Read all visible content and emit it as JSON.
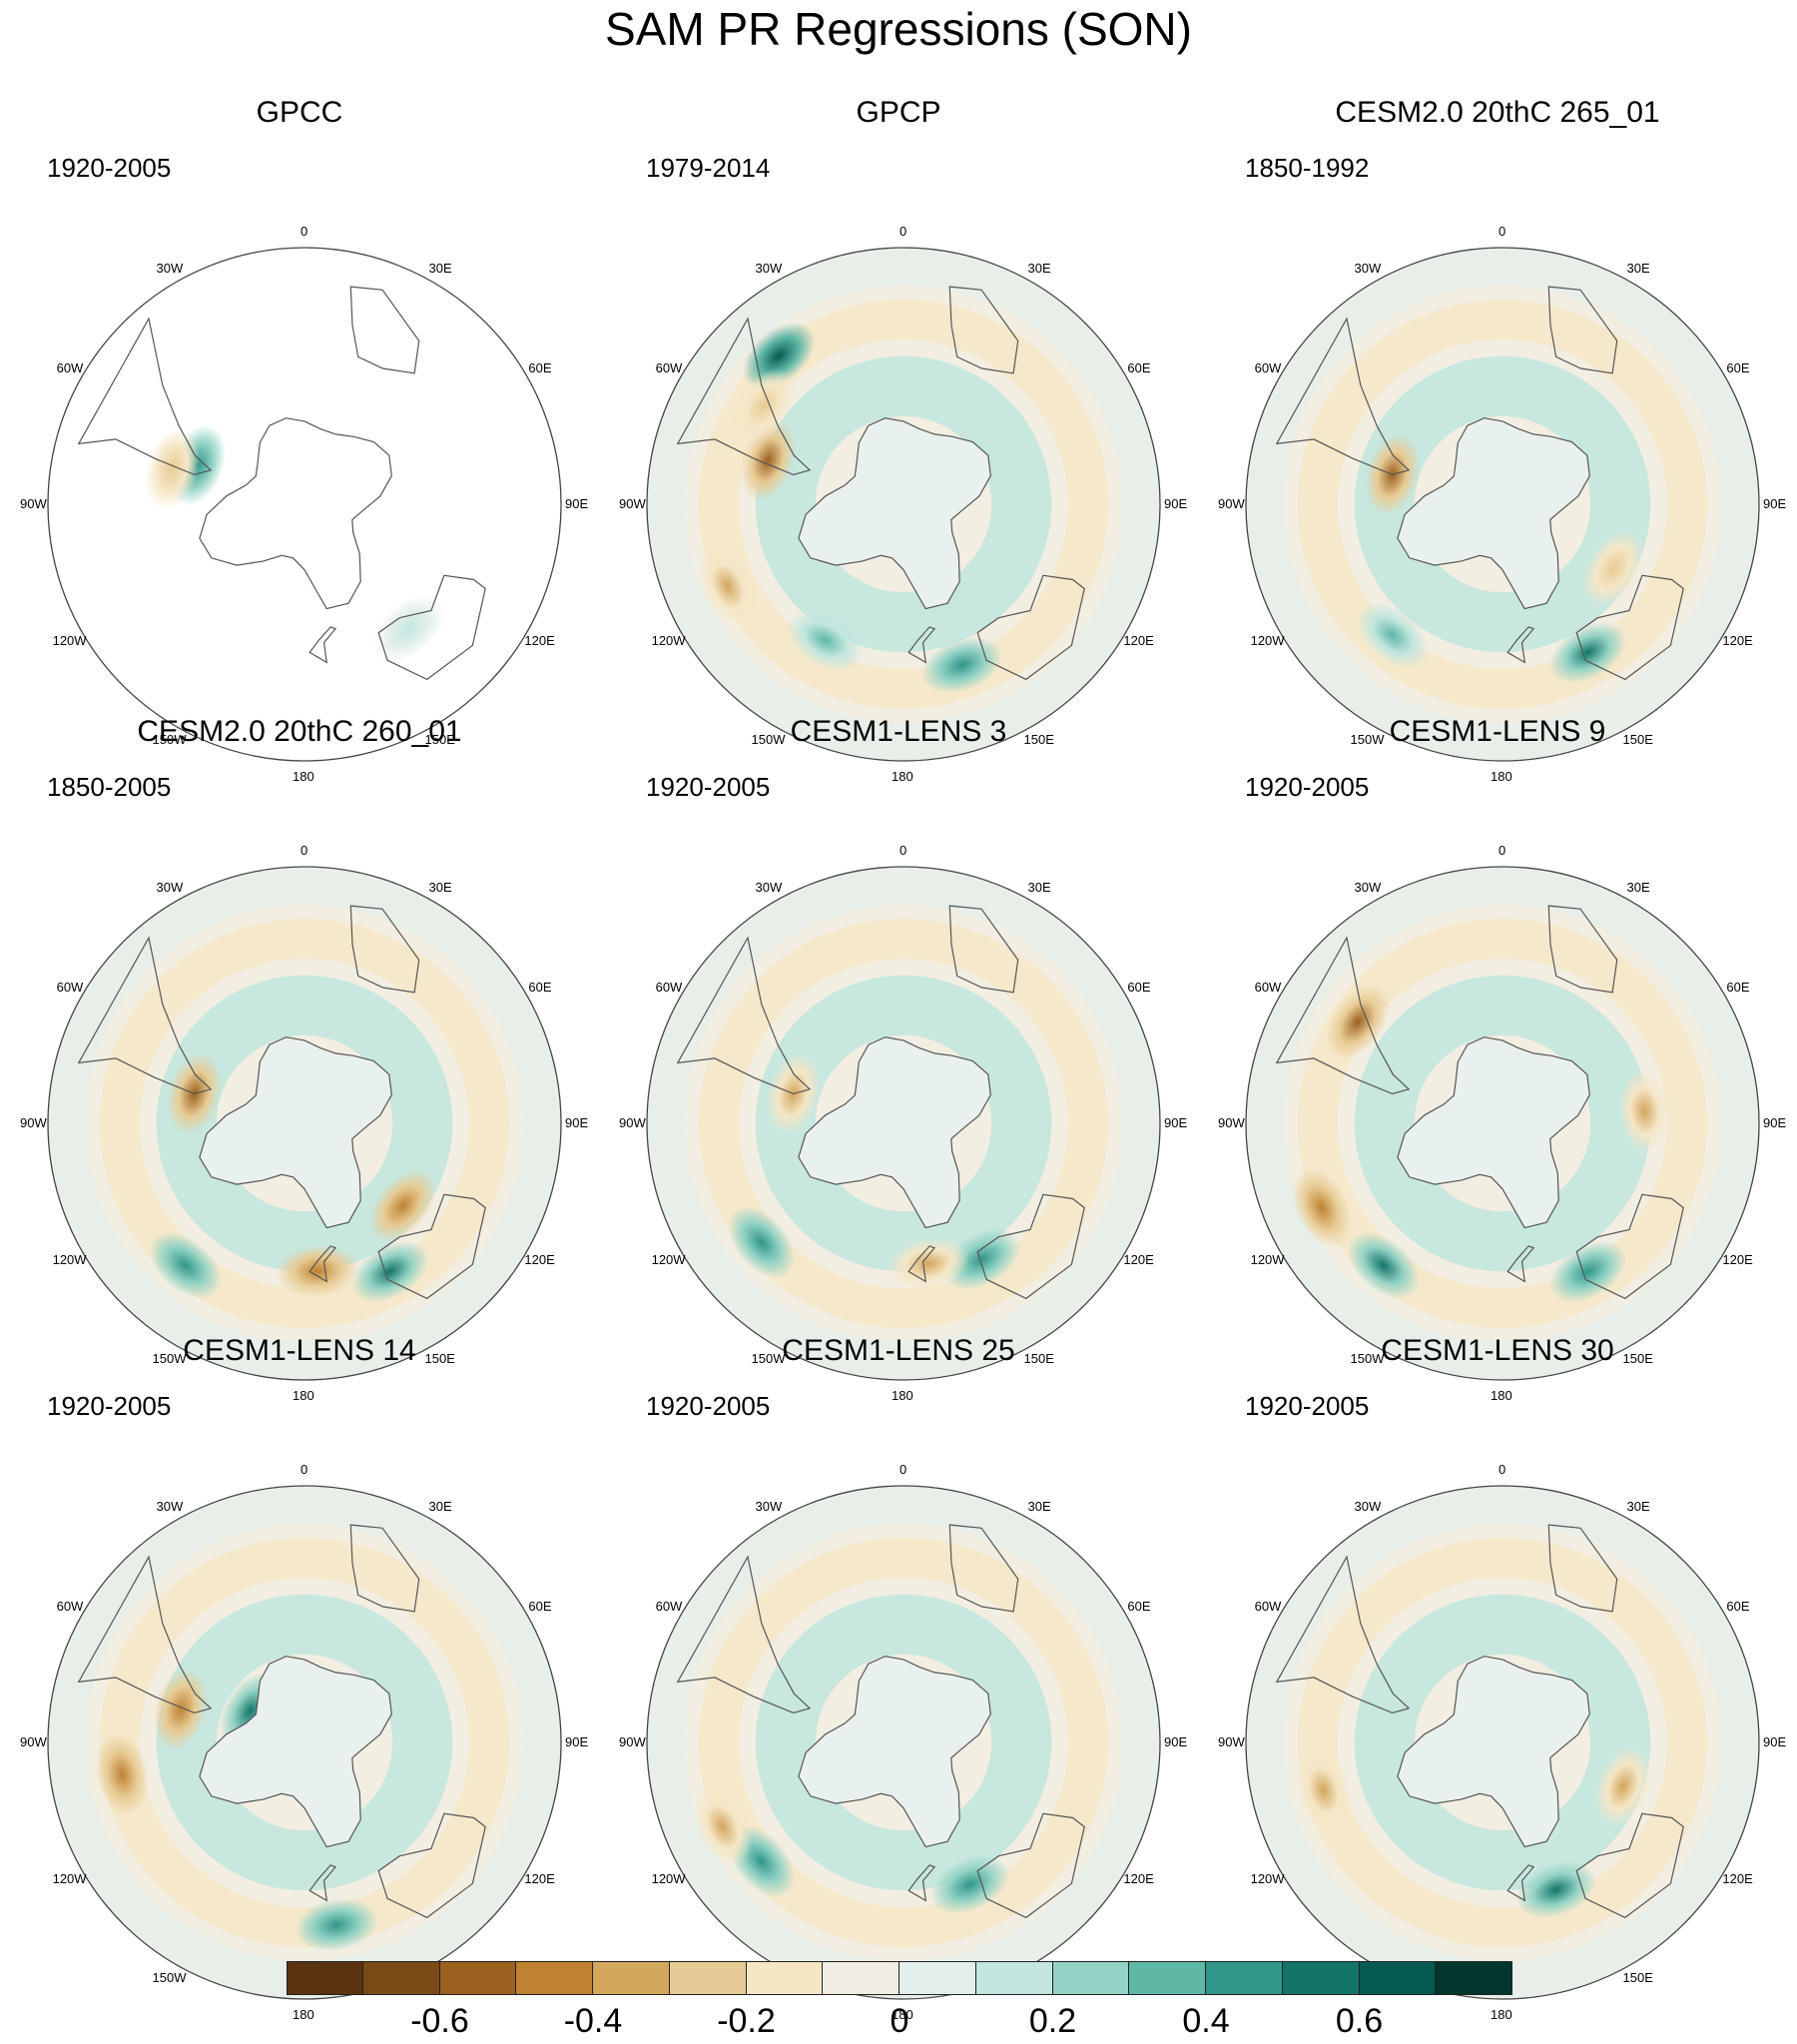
{
  "figure": {
    "title": "SAM PR Regressions (SON)"
  },
  "longitude_labels": [
    "0",
    "30E",
    "60E",
    "90E",
    "120E",
    "150E",
    "180",
    "150W",
    "120W",
    "90W",
    "60W",
    "30W"
  ],
  "panels": [
    {
      "title": "GPCC",
      "period": "1920-2005",
      "coverage": "land-only",
      "features": [
        {
          "kind": "pos",
          "lon": -70,
          "lat": -50,
          "level": 0.45
        },
        {
          "kind": "neg",
          "lon": -75,
          "lat": -42,
          "level": -0.25
        },
        {
          "kind": "pos",
          "lon": 140,
          "lat": -33,
          "level": 0.15
        }
      ]
    },
    {
      "title": "GPCP",
      "period": "1979-2014",
      "coverage": "global",
      "features": [
        {
          "kind": "pos",
          "lon": -40,
          "lat": -22,
          "level": 0.65
        },
        {
          "kind": "neg",
          "lon": -72,
          "lat": -40,
          "level": -0.6
        },
        {
          "kind": "neg",
          "lon": -115,
          "lat": -22,
          "level": -0.35
        },
        {
          "kind": "pos",
          "lon": 160,
          "lat": -30,
          "level": 0.45
        },
        {
          "kind": "pos",
          "lon": -150,
          "lat": -35,
          "level": 0.3
        },
        {
          "kind": "neg",
          "lon": -55,
          "lat": -30,
          "level": -0.25
        }
      ]
    },
    {
      "title": "CESM2.0 20thC 265_01",
      "period": "1850-1992",
      "coverage": "global",
      "features": [
        {
          "kind": "neg",
          "lon": -75,
          "lat": -50,
          "level": -0.6
        },
        {
          "kind": "pos",
          "lon": 150,
          "lat": -30,
          "level": 0.5
        },
        {
          "kind": "pos",
          "lon": -140,
          "lat": -30,
          "level": 0.35
        },
        {
          "kind": "neg",
          "lon": 120,
          "lat": -45,
          "level": -0.25
        }
      ]
    },
    {
      "title": "CESM2.0 20thC 260_01",
      "period": "1850-2005",
      "coverage": "global",
      "features": [
        {
          "kind": "neg",
          "lon": -75,
          "lat": -50,
          "level": -0.6
        },
        {
          "kind": "neg",
          "lon": 130,
          "lat": -45,
          "level": -0.45
        },
        {
          "kind": "pos",
          "lon": 150,
          "lat": -30,
          "level": 0.55
        },
        {
          "kind": "neg",
          "lon": 175,
          "lat": -38,
          "level": -0.5
        },
        {
          "kind": "pos",
          "lon": -140,
          "lat": -25,
          "level": 0.4
        }
      ]
    },
    {
      "title": "CESM1-LENS 3",
      "period": "1920-2005",
      "coverage": "global",
      "features": [
        {
          "kind": "pos",
          "lon": -130,
          "lat": -25,
          "level": 0.45
        },
        {
          "kind": "neg",
          "lon": -75,
          "lat": -50,
          "level": -0.35
        },
        {
          "kind": "pos",
          "lon": 150,
          "lat": -35,
          "level": 0.4
        },
        {
          "kind": "neg",
          "lon": 170,
          "lat": -40,
          "level": -0.35
        }
      ]
    },
    {
      "title": "CESM1-LENS 9",
      "period": "1920-2005",
      "coverage": "global",
      "features": [
        {
          "kind": "neg",
          "lon": -55,
          "lat": -28,
          "level": -0.55
        },
        {
          "kind": "neg",
          "lon": -115,
          "lat": -20,
          "level": -0.5
        },
        {
          "kind": "pos",
          "lon": -140,
          "lat": -25,
          "level": 0.55
        },
        {
          "kind": "neg",
          "lon": 85,
          "lat": -40,
          "level": -0.35
        },
        {
          "kind": "pos",
          "lon": 150,
          "lat": -30,
          "level": 0.4
        }
      ]
    },
    {
      "title": "CESM1-LENS 14",
      "period": "1920-2005",
      "coverage": "global",
      "features": [
        {
          "kind": "neg",
          "lon": -100,
          "lat": -25,
          "level": -0.45
        },
        {
          "kind": "neg",
          "lon": -75,
          "lat": -45,
          "level": -0.5
        },
        {
          "kind": "pos",
          "lon": -60,
          "lat": -68,
          "level": 0.55
        },
        {
          "kind": "pos",
          "lon": 170,
          "lat": -25,
          "level": 0.45
        }
      ]
    },
    {
      "title": "CESM1-LENS 25",
      "period": "1920-2005",
      "coverage": "global",
      "features": [
        {
          "kind": "pos",
          "lon": -130,
          "lat": -25,
          "level": 0.45
        },
        {
          "kind": "neg",
          "lon": -115,
          "lat": -20,
          "level": -0.35
        },
        {
          "kind": "pos",
          "lon": 155,
          "lat": -35,
          "level": 0.4
        }
      ]
    },
    {
      "title": "CESM1-LENS 30",
      "period": "1920-2005",
      "coverage": "global",
      "features": [
        {
          "kind": "neg",
          "lon": -105,
          "lat": -25,
          "level": -0.4
        },
        {
          "kind": "neg",
          "lon": 110,
          "lat": -45,
          "level": -0.35
        },
        {
          "kind": "pos",
          "lon": 160,
          "lat": -35,
          "level": 0.55
        }
      ]
    }
  ],
  "colorbar": {
    "colors": [
      "#5a3410",
      "#7a4a16",
      "#9c601f",
      "#bf8233",
      "#d3a65d",
      "#e7cb94",
      "#f5e6c6",
      "#f2eee3",
      "#e3efec",
      "#c2e6df",
      "#93d3c5",
      "#5fb7a6",
      "#31968a",
      "#137569",
      "#045a4f",
      "#01362e"
    ],
    "tick_labels": [
      "-0.6",
      "-0.4",
      "-0.2",
      "0",
      "0.2",
      "0.4",
      "0.6"
    ],
    "tick_values": [
      -0.6,
      -0.4,
      -0.2,
      0,
      0.2,
      0.4,
      0.6
    ],
    "boundaries": [
      -0.7,
      -0.6,
      -0.5,
      -0.4,
      -0.3,
      -0.2,
      -0.1,
      0,
      0.1,
      0.2,
      0.3,
      0.4,
      0.5,
      0.6,
      0.7
    ]
  }
}
